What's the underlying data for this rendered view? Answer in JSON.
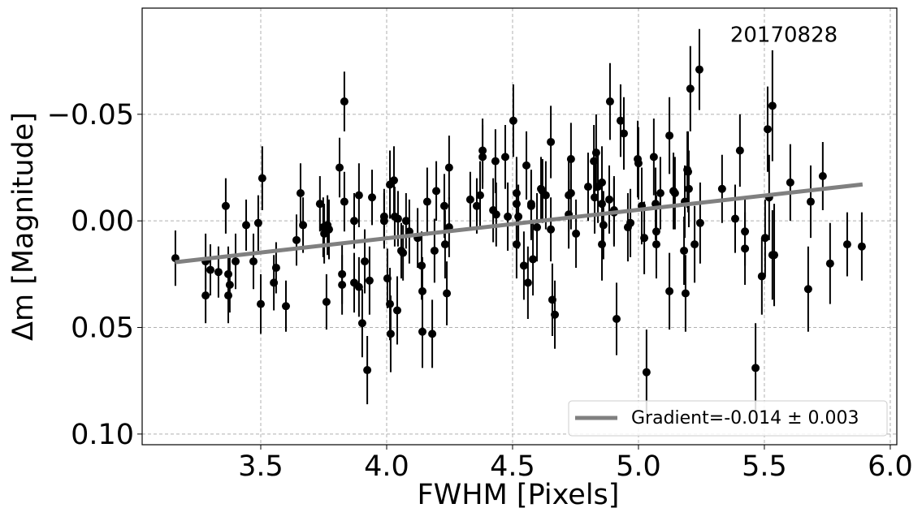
{
  "chart_data": {
    "type": "scatter",
    "annotation": "20170828",
    "xlabel": "FWHM [Pixels]",
    "ylabel": "Δm [Magnitude]",
    "xlim": [
      3.029,
      6.026
    ],
    "ylim": [
      0.105,
      -0.0998
    ],
    "xticks": [
      3.5,
      {
        "value": 4,
        "label": "4.0"
      },
      4.5,
      {
        "value": 5,
        "label": "5.0"
      },
      5.5,
      {
        "value": 6,
        "label": "6.0"
      }
    ],
    "yticks": [
      {
        "value": -0.05,
        "label": "−0.05"
      },
      {
        "value": 0,
        "label": "0.00"
      },
      0.05,
      {
        "value": 0.1,
        "label": "0.10"
      }
    ],
    "grid": true,
    "legend": "lower right",
    "series": [
      {
        "kind": "errorbar",
        "color": "#000000",
        "x": [
          3.161,
          3.281,
          3.281,
          3.3,
          3.332,
          3.361,
          3.371,
          3.371,
          3.377,
          3.4,
          3.442,
          3.471,
          3.49,
          3.5,
          3.506,
          3.552,
          3.561,
          3.6,
          3.642,
          3.658,
          3.668,
          3.735,
          3.748,
          3.752,
          3.761,
          3.765,
          3.771,
          3.813,
          3.823,
          3.823,
          3.832,
          3.832,
          3.871,
          3.871,
          3.89,
          3.89,
          3.903,
          3.913,
          3.923,
          3.932,
          3.942,
          3.99,
          3.99,
          4.003,
          4.013,
          4.013,
          4.016,
          4.029,
          4.032,
          4.042,
          4.045,
          4.058,
          4.065,
          4.077,
          4.09,
          4.123,
          4.139,
          4.142,
          4.142,
          4.161,
          4.181,
          4.19,
          4.197,
          4.229,
          4.232,
          4.239,
          4.248,
          4.248,
          4.332,
          4.358,
          4.371,
          4.381,
          4.381,
          4.423,
          4.432,
          4.435,
          4.471,
          4.481,
          4.503,
          4.516,
          4.516,
          4.516,
          4.523,
          4.545,
          4.555,
          4.561,
          4.574,
          4.574,
          4.581,
          4.597,
          4.613,
          4.619,
          4.632,
          4.652,
          4.652,
          4.658,
          4.668,
          4.723,
          4.723,
          4.732,
          4.732,
          4.752,
          4.8,
          4.823,
          4.826,
          4.832,
          4.839,
          4.855,
          4.855,
          4.855,
          4.861,
          4.884,
          4.887,
          4.903,
          4.903,
          4.913,
          4.929,
          4.942,
          4.958,
          4.968,
          4.997,
          5.0,
          5.013,
          5.023,
          5.032,
          5.061,
          5.068,
          5.071,
          5.071,
          5.087,
          5.123,
          5.123,
          5.139,
          5.145,
          5.181,
          5.184,
          5.187,
          5.194,
          5.197,
          5.2,
          5.206,
          5.223,
          5.242,
          5.245,
          5.332,
          5.384,
          5.403,
          5.423,
          5.423,
          5.465,
          5.49,
          5.503,
          5.513,
          5.519,
          5.532,
          5.532,
          5.539,
          5.603,
          5.674,
          5.684,
          5.732,
          5.761,
          5.829,
          5.887
        ],
        "values": [
          0.0175,
          0.019,
          0.035,
          0.023,
          0.024,
          -0.007,
          0.025,
          0.035,
          0.03,
          0.019,
          0.002,
          0.019,
          0.001,
          0.039,
          -0.02,
          0.029,
          0.022,
          0.04,
          0.009,
          -0.013,
          0.002,
          -0.008,
          0.003,
          0.006,
          0.038,
          0.002,
          0.004,
          -0.025,
          0.025,
          0.03,
          -0.056,
          -0.009,
          0.0,
          0.029,
          -0.012,
          0.031,
          0.048,
          0.019,
          0.07,
          0.028,
          -0.011,
          -0.002,
          0.0,
          0.027,
          -0.017,
          0.039,
          0.053,
          -0.019,
          -0.002,
          0.042,
          -0.001,
          0.014,
          0.015,
          0.0,
          0.005,
          0.008,
          0.021,
          0.052,
          0.033,
          -0.009,
          0.053,
          0.014,
          -0.014,
          -0.007,
          0.011,
          0.034,
          -0.025,
          0.003,
          -0.01,
          -0.007,
          -0.012,
          -0.03,
          -0.033,
          -0.005,
          -0.028,
          -0.003,
          -0.03,
          -0.002,
          -0.047,
          -0.013,
          -0.008,
          0.011,
          -0.002,
          0.021,
          -0.026,
          0.029,
          -0.008,
          -0.007,
          0.018,
          0.003,
          -0.015,
          -0.014,
          -0.012,
          -0.037,
          0.004,
          0.037,
          0.044,
          -0.003,
          -0.012,
          -0.029,
          -0.013,
          0.006,
          -0.016,
          -0.028,
          -0.011,
          -0.032,
          -0.016,
          -0.018,
          0.011,
          -0.008,
          0.002,
          -0.01,
          -0.056,
          -0.005,
          -0.004,
          0.046,
          -0.047,
          -0.041,
          0.003,
          0.001,
          -0.029,
          -0.027,
          -0.007,
          0.008,
          0.071,
          -0.03,
          -0.008,
          0.005,
          0.011,
          -0.013,
          -0.04,
          0.033,
          -0.014,
          -0.013,
          0.014,
          -0.009,
          0.034,
          -0.024,
          -0.023,
          -0.015,
          -0.062,
          0.011,
          -0.071,
          0.001,
          -0.015,
          -0.001,
          -0.033,
          0.005,
          0.013,
          0.069,
          0.026,
          0.008,
          -0.043,
          -0.011,
          0.016,
          -0.054,
          0.016,
          -0.018,
          0.032,
          -0.009,
          -0.021,
          0.02,
          0.011,
          0.012
        ],
        "errors": [
          0.013,
          0.013,
          0.013,
          0.012,
          0.012,
          0.013,
          0.013,
          0.013,
          0.013,
          0.013,
          0.012,
          0.013,
          0.013,
          0.014,
          0.015,
          0.013,
          0.012,
          0.012,
          0.012,
          0.014,
          0.013,
          0.013,
          0.014,
          0.014,
          0.013,
          0.014,
          0.014,
          0.014,
          0.014,
          0.014,
          0.014,
          0.014,
          0.013,
          0.014,
          0.015,
          0.014,
          0.016,
          0.015,
          0.016,
          0.016,
          0.013,
          0.013,
          0.013,
          0.014,
          0.016,
          0.017,
          0.018,
          0.016,
          0.014,
          0.016,
          0.013,
          0.013,
          0.013,
          0.013,
          0.015,
          0.014,
          0.016,
          0.017,
          0.016,
          0.016,
          0.016,
          0.015,
          0.014,
          0.015,
          0.016,
          0.015,
          0.015,
          0.014,
          0.013,
          0.013,
          0.016,
          0.015,
          0.015,
          0.015,
          0.015,
          0.015,
          0.015,
          0.016,
          0.017,
          0.017,
          0.016,
          0.016,
          0.015,
          0.016,
          0.016,
          0.017,
          0.016,
          0.016,
          0.017,
          0.016,
          0.015,
          0.015,
          0.016,
          0.017,
          0.015,
          0.017,
          0.016,
          0.016,
          0.017,
          0.017,
          0.017,
          0.016,
          0.016,
          0.017,
          0.017,
          0.018,
          0.017,
          0.017,
          0.017,
          0.017,
          0.016,
          0.016,
          0.018,
          0.016,
          0.016,
          0.017,
          0.017,
          0.017,
          0.016,
          0.016,
          0.018,
          0.017,
          0.018,
          0.017,
          0.02,
          0.018,
          0.017,
          0.017,
          0.016,
          0.017,
          0.018,
          0.018,
          0.018,
          0.017,
          0.016,
          0.017,
          0.018,
          0.018,
          0.019,
          0.018,
          0.02,
          0.018,
          0.019,
          0.019,
          0.016,
          0.016,
          0.017,
          0.016,
          0.017,
          0.021,
          0.018,
          0.018,
          0.02,
          0.02,
          0.021,
          0.026,
          0.024,
          0.018,
          0.02,
          0.017,
          0.016,
          0.019,
          0.015,
          0.016
        ]
      },
      {
        "kind": "line",
        "name": "Gradient=-0.014 ± 0.003",
        "color": "#808080",
        "x": [
          3.16,
          5.89
        ],
        "values": [
          0.0194,
          -0.0171
        ]
      }
    ]
  }
}
